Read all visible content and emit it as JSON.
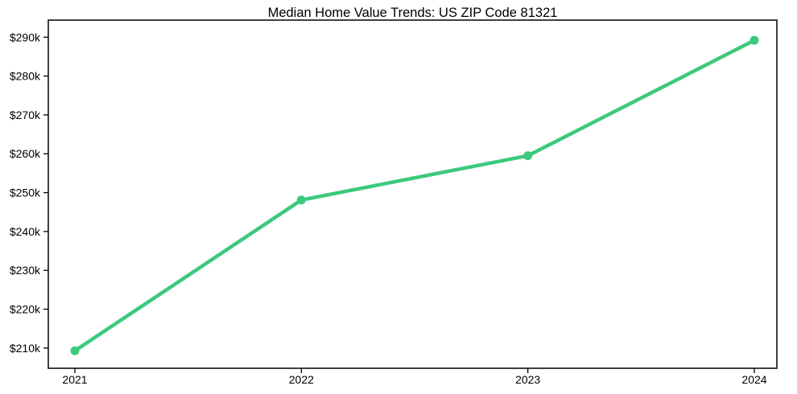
{
  "chart_data": {
    "type": "line",
    "title": "Median Home Value Trends: US ZIP Code 81321",
    "categories": [
      "2021",
      "2022",
      "2023",
      "2024"
    ],
    "series": [
      {
        "name": "median-home-value",
        "values": [
          209300,
          248100,
          259500,
          289200
        ]
      }
    ],
    "y_tick_values": [
      210000,
      220000,
      230000,
      240000,
      250000,
      260000,
      270000,
      280000,
      290000
    ],
    "y_tick_labels": [
      "$210k",
      "$220k",
      "$230k",
      "$240k",
      "$250k",
      "$260k",
      "$270k",
      "$280k",
      "$290k"
    ],
    "ylim": [
      204800,
      294400
    ],
    "xlabel": "",
    "ylabel": "",
    "grid": false,
    "legend": "none",
    "marker": "circle",
    "colors": {
      "line": "#3cc97d",
      "axis": "#000000",
      "text": "#000000",
      "background": "#ffffff"
    }
  }
}
